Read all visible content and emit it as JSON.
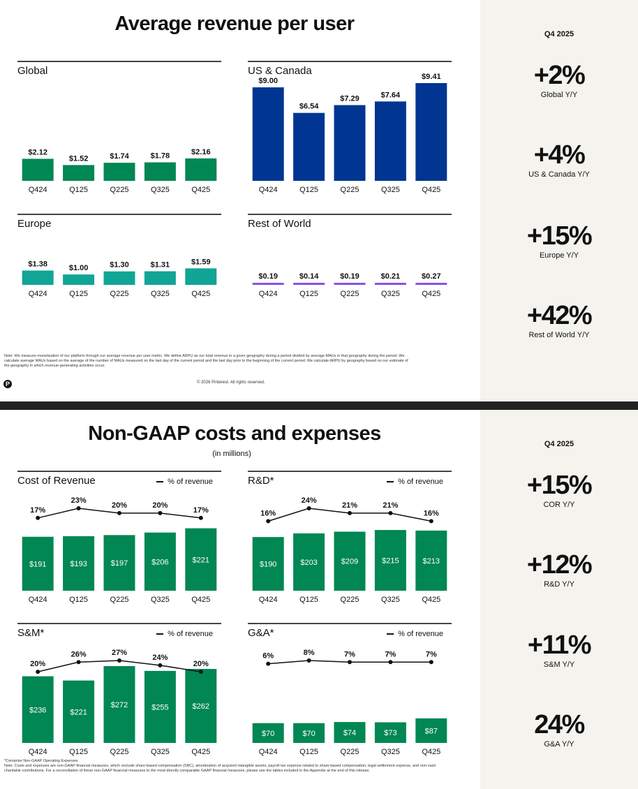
{
  "slide1": {
    "title": "Average revenue per user",
    "side_period": "Q4 2025",
    "kpis": [
      {
        "value": "+2%",
        "label": "Global Y/Y"
      },
      {
        "value": "+4%",
        "label": "US & Canada Y/Y"
      },
      {
        "value": "+15%",
        "label": "Europe Y/Y"
      },
      {
        "value": "+42%",
        "label": "Rest of World Y/Y"
      }
    ],
    "note": "Note: We measure monetization of our platform through our average revenue per user metric. We define ARPU as our total revenue in a given geography during a period divided by average MAUs in that geography during the period. We calculate average MAUs based on the average of the number of MAUs measured on the last day of the current period and the last day prior to the beginning of the current period. We calculate ARPU by geography based on our estimate of the geography in which revenue-generating activities occur.",
    "copyright": "© 2026 Pinterest. All rights reserved.",
    "logo_icon": "pinterest-logo-icon"
  },
  "slide2": {
    "title": "Non-GAAP costs and expenses",
    "subtitle": "(in millions)",
    "legend_label": "% of revenue",
    "side_period": "Q4 2025",
    "kpis": [
      {
        "value": "+15%",
        "label": "COR Y/Y"
      },
      {
        "value": "+12%",
        "label": "R&D Y/Y"
      },
      {
        "value": "+11%",
        "label": "S&M Y/Y"
      },
      {
        "value": "24%",
        "label": "G&A Y/Y"
      }
    ],
    "footnote": "*Comprise Non-GAAP Operating Expenses",
    "note": "Note: Costs and expenses are non-GAAP financial measures, which exclude share-based compensation (SBC), amortization of acquired intangible assets, payroll tax expense related to share-based compensation, legal settlement expense, and non-cash charitable contributions. For a reconciliation of these non-GAAP financial measures to the most directly comparable GAAP financial measures, please see the tables included in the Appendix at the end of this release."
  },
  "chart_data": [
    {
      "id": "arpu-global",
      "type": "bar",
      "title": "Global",
      "categories": [
        "Q424",
        "Q125",
        "Q225",
        "Q325",
        "Q425"
      ],
      "values": [
        2.12,
        1.52,
        1.74,
        1.78,
        2.16
      ],
      "labels": [
        "$2.12",
        "$1.52",
        "$1.74",
        "$1.78",
        "$2.16"
      ],
      "color": "#008753",
      "ylim": [
        0,
        9.41
      ]
    },
    {
      "id": "arpu-us-canada",
      "type": "bar",
      "title": "US & Canada",
      "categories": [
        "Q424",
        "Q125",
        "Q225",
        "Q325",
        "Q425"
      ],
      "values": [
        9.0,
        6.54,
        7.29,
        7.64,
        9.41
      ],
      "labels": [
        "$9.00",
        "$6.54",
        "$7.29",
        "$7.64",
        "$9.41"
      ],
      "color": "#003591",
      "ylim": [
        0,
        9.41
      ]
    },
    {
      "id": "arpu-europe",
      "type": "bar",
      "title": "Europe",
      "categories": [
        "Q424",
        "Q125",
        "Q225",
        "Q325",
        "Q425"
      ],
      "values": [
        1.38,
        1.0,
        1.3,
        1.31,
        1.59
      ],
      "labels": [
        "$1.38",
        "$1.00",
        "$1.30",
        "$1.31",
        "$1.59"
      ],
      "color": "#10a595",
      "ylim": [
        0,
        9.41
      ]
    },
    {
      "id": "arpu-rest-of-world",
      "type": "bar",
      "title": "Rest of World",
      "categories": [
        "Q424",
        "Q125",
        "Q225",
        "Q325",
        "Q425"
      ],
      "values": [
        0.19,
        0.14,
        0.19,
        0.21,
        0.27
      ],
      "labels": [
        "$0.19",
        "$0.14",
        "$0.19",
        "$0.21",
        "$0.27"
      ],
      "color": "#8b4ff0",
      "ylim": [
        0,
        9.41
      ]
    },
    {
      "id": "cost-of-revenue",
      "type": "bar",
      "title": "Cost of Revenue",
      "categories": [
        "Q424",
        "Q125",
        "Q225",
        "Q325",
        "Q425"
      ],
      "values": [
        191,
        193,
        197,
        206,
        221
      ],
      "labels": [
        "$191",
        "$193",
        "$197",
        "$206",
        "$221"
      ],
      "line_series": {
        "name": "% of revenue",
        "values": [
          17,
          23,
          20,
          20,
          17
        ],
        "labels": [
          "17%",
          "23%",
          "20%",
          "20%",
          "17%"
        ]
      },
      "color": "#008753",
      "ylim": [
        0,
        272
      ]
    },
    {
      "id": "r-and-d",
      "type": "bar",
      "title": "R&D*",
      "categories": [
        "Q424",
        "Q125",
        "Q225",
        "Q325",
        "Q425"
      ],
      "values": [
        190,
        203,
        209,
        215,
        213
      ],
      "labels": [
        "$190",
        "$203",
        "$209",
        "$215",
        "$213"
      ],
      "line_series": {
        "name": "% of revenue",
        "values": [
          16,
          24,
          21,
          21,
          16
        ],
        "labels": [
          "16%",
          "24%",
          "21%",
          "21%",
          "16%"
        ]
      },
      "color": "#008753",
      "ylim": [
        0,
        272
      ]
    },
    {
      "id": "s-and-m",
      "type": "bar",
      "title": "S&M*",
      "categories": [
        "Q424",
        "Q125",
        "Q225",
        "Q325",
        "Q425"
      ],
      "values": [
        236,
        221,
        272,
        255,
        262
      ],
      "labels": [
        "$236",
        "$221",
        "$272",
        "$255",
        "$262"
      ],
      "line_series": {
        "name": "% of revenue",
        "values": [
          20,
          26,
          27,
          24,
          20
        ],
        "labels": [
          "20%",
          "26%",
          "27%",
          "24%",
          "20%"
        ]
      },
      "color": "#008753",
      "ylim": [
        0,
        272
      ]
    },
    {
      "id": "g-and-a",
      "type": "bar",
      "title": "G&A*",
      "categories": [
        "Q424",
        "Q125",
        "Q225",
        "Q325",
        "Q425"
      ],
      "values": [
        70,
        70,
        74,
        73,
        87
      ],
      "labels": [
        "$70",
        "$70",
        "$74",
        "$73",
        "$87"
      ],
      "line_series": {
        "name": "% of revenue",
        "values": [
          6,
          8,
          7,
          7,
          7
        ],
        "labels": [
          "6%",
          "8%",
          "7%",
          "7%",
          "7%"
        ]
      },
      "color": "#008753",
      "ylim": [
        0,
        272
      ]
    }
  ]
}
